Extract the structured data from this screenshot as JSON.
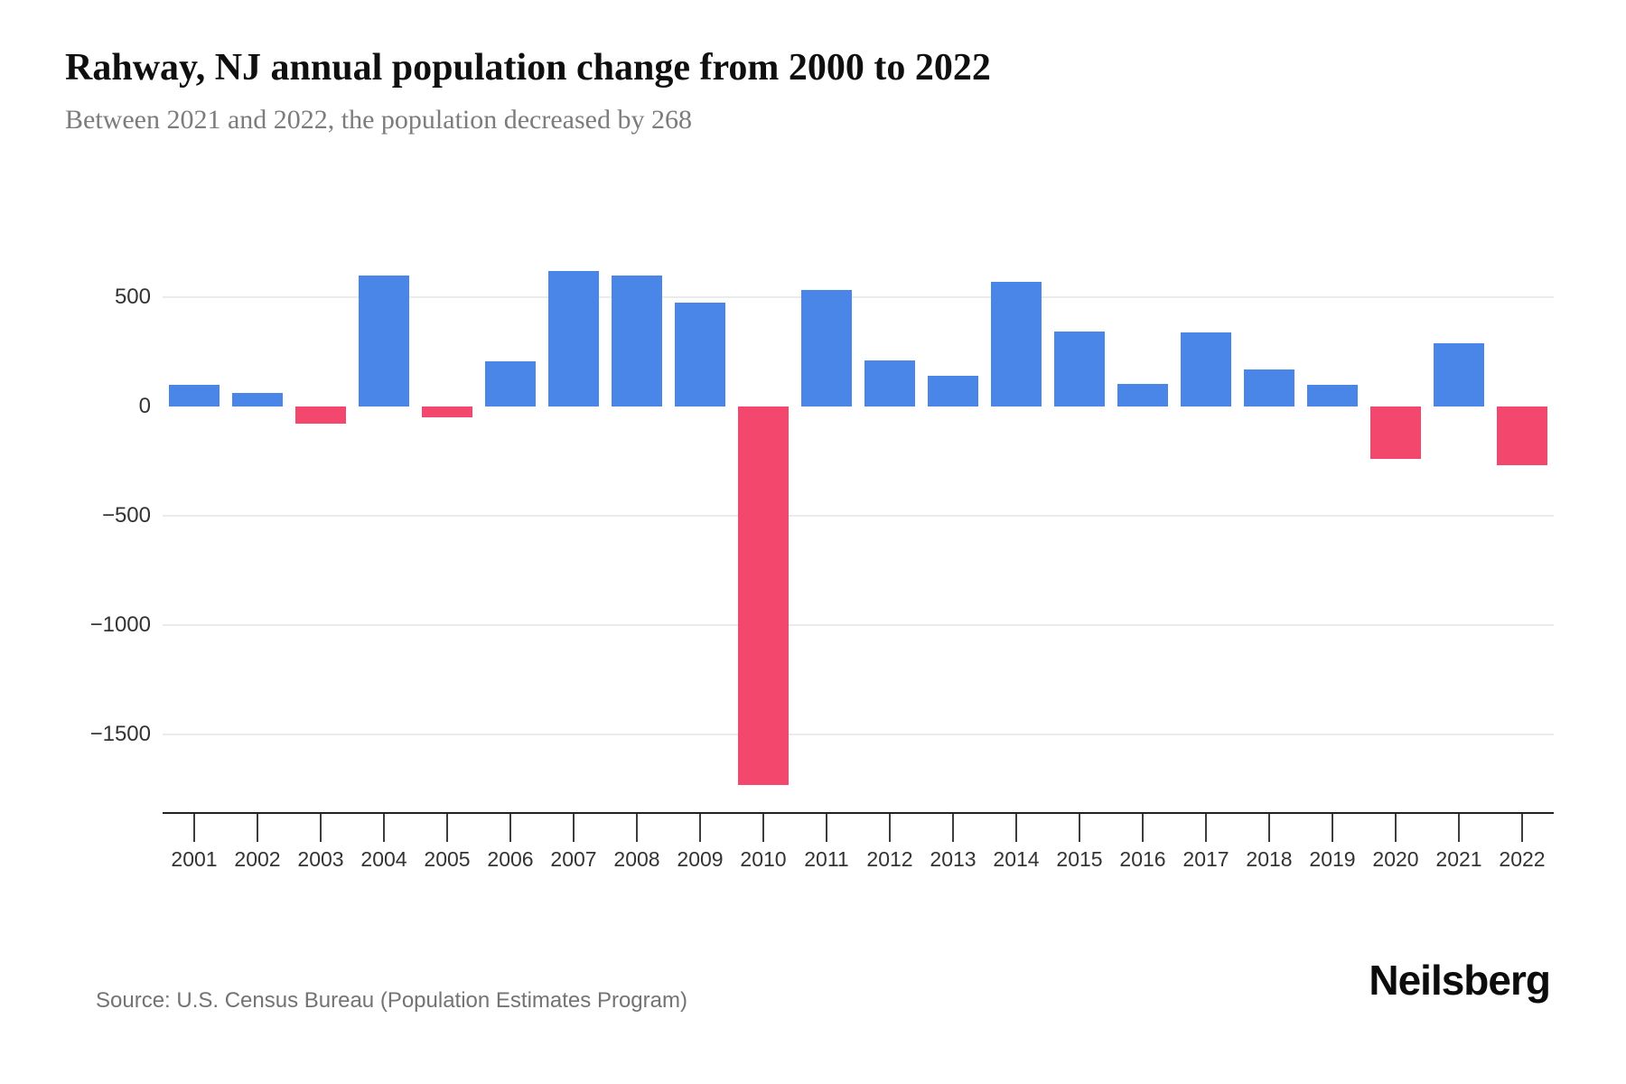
{
  "header": {
    "title": "Rahway, NJ annual population change from 2000 to 2022",
    "subtitle": "Between 2021 and 2022, the population decreased by 268"
  },
  "footer": {
    "source": "Source: U.S. Census Bureau (Population Estimates Program)",
    "brand": "Neilsberg"
  },
  "chart_data": {
    "type": "bar",
    "title": "Rahway, NJ annual population change from 2000 to 2022",
    "subtitle": "Between 2021 and 2022, the population decreased by 268",
    "xlabel": "",
    "ylabel": "",
    "categories": [
      "2001",
      "2002",
      "2003",
      "2004",
      "2005",
      "2006",
      "2007",
      "2008",
      "2009",
      "2010",
      "2011",
      "2012",
      "2013",
      "2014",
      "2015",
      "2016",
      "2017",
      "2018",
      "2019",
      "2020",
      "2021",
      "2022"
    ],
    "values": [
      100,
      60,
      -80,
      600,
      -50,
      205,
      620,
      600,
      475,
      -1730,
      535,
      210,
      140,
      570,
      345,
      105,
      340,
      170,
      100,
      -240,
      290,
      -268
    ],
    "yticks": [
      {
        "value": 500,
        "label": "500",
        "gridline": true
      },
      {
        "value": 0,
        "label": "0",
        "gridline": false
      },
      {
        "value": -500,
        "label": "−500",
        "gridline": true
      },
      {
        "value": -1000,
        "label": "−1000",
        "gridline": true
      },
      {
        "value": -1500,
        "label": "−1500",
        "gridline": true
      }
    ],
    "ylim": [
      -1860,
      870
    ],
    "grid": "horizontal",
    "legend": "none",
    "colors": {
      "positive": "#4a86e8",
      "negative": "#f4476e"
    }
  }
}
